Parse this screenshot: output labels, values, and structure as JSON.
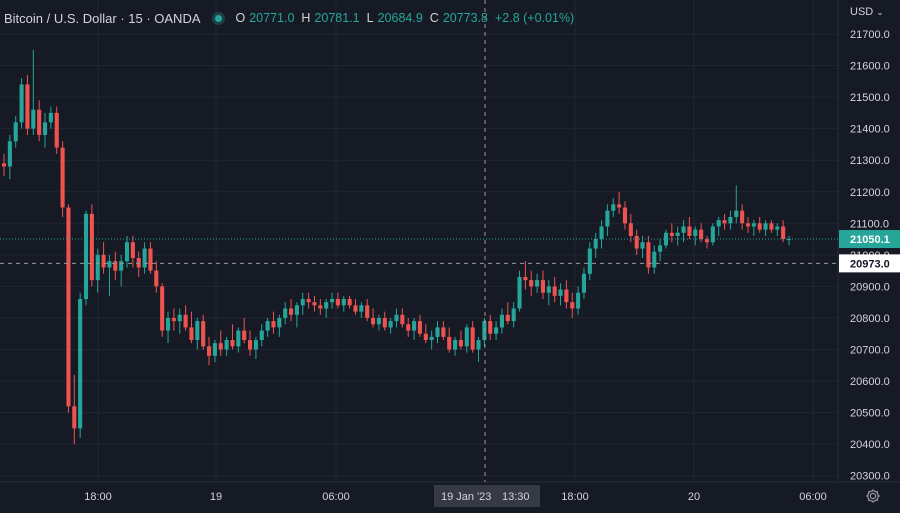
{
  "legend": {
    "symbol": "Bitcoin / U.S. Dollar · 15 · OANDA",
    "open_key": "O",
    "open": "20771.0",
    "high_key": "H",
    "high": "20781.1",
    "low_key": "L",
    "low": "20684.9",
    "close_key": "C",
    "close": "20773.8",
    "change": "+2.8 (+0.01%)"
  },
  "currency": "USD",
  "icons": {
    "status": "live-dot-icon",
    "currency_menu": "chevron-down-icon",
    "settings": "gear-icon"
  },
  "colors": {
    "up": "#26a69a",
    "down": "#ef5350",
    "background": "#161a25",
    "grid": "#222632",
    "text": "#d1d4dc"
  },
  "chart_data": {
    "type": "candlestick",
    "interval_minutes": 15,
    "ylim": [
      20300,
      21730
    ],
    "y_ticks": [
      "21700.0",
      "21600.0",
      "21500.0",
      "21400.0",
      "21300.0",
      "21200.0",
      "21100.0",
      "21000.0",
      "20900.0",
      "20800.0",
      "20700.0",
      "20600.0",
      "20500.0",
      "20400.0",
      "20300.0"
    ],
    "x_ticks": [
      "18:00",
      "19",
      "06:00",
      "18:00",
      "20",
      "06:00"
    ],
    "grid": true,
    "last_price": {
      "value": 21050.1,
      "label": "21050.1"
    },
    "crosshair": {
      "time_label": "19 Jan '23",
      "clock_label": "13:30",
      "price_label": "20973.0",
      "price": 20973.0
    },
    "candles": [
      [
        21290,
        21320,
        21250,
        21280
      ],
      [
        21280,
        21380,
        21240,
        21360
      ],
      [
        21360,
        21440,
        21340,
        21420
      ],
      [
        21420,
        21560,
        21400,
        21540
      ],
      [
        21540,
        21570,
        21380,
        21400
      ],
      [
        21400,
        21650,
        21380,
        21460
      ],
      [
        21460,
        21490,
        21360,
        21380
      ],
      [
        21380,
        21450,
        21340,
        21420
      ],
      [
        21420,
        21470,
        21400,
        21450
      ],
      [
        21450,
        21470,
        21320,
        21340
      ],
      [
        21340,
        21360,
        21120,
        21150
      ],
      [
        21150,
        21160,
        20500,
        20520
      ],
      [
        20520,
        20620,
        20400,
        20450
      ],
      [
        20450,
        20880,
        20420,
        20860
      ],
      [
        20860,
        21140,
        20840,
        21130
      ],
      [
        21130,
        21160,
        20900,
        20920
      ],
      [
        20920,
        21020,
        20880,
        21000
      ],
      [
        21000,
        21040,
        20940,
        20960
      ],
      [
        20960,
        21000,
        20870,
        20980
      ],
      [
        20980,
        21010,
        20920,
        20950
      ],
      [
        20950,
        21000,
        20900,
        20980
      ],
      [
        20980,
        21060,
        20960,
        21040
      ],
      [
        21040,
        21060,
        20960,
        20990
      ],
      [
        20990,
        21010,
        20930,
        20960
      ],
      [
        20960,
        21040,
        20940,
        21020
      ],
      [
        21020,
        21040,
        20940,
        20950
      ],
      [
        20950,
        20980,
        20880,
        20900
      ],
      [
        20900,
        20910,
        20740,
        20760
      ],
      [
        20760,
        20820,
        20720,
        20800
      ],
      [
        20800,
        20830,
        20760,
        20790
      ],
      [
        20790,
        20830,
        20750,
        20810
      ],
      [
        20810,
        20840,
        20760,
        20770
      ],
      [
        20770,
        20820,
        20720,
        20730
      ],
      [
        20730,
        20800,
        20700,
        20790
      ],
      [
        20790,
        20810,
        20700,
        20710
      ],
      [
        20710,
        20740,
        20650,
        20680
      ],
      [
        20680,
        20730,
        20660,
        20720
      ],
      [
        20720,
        20760,
        20680,
        20700
      ],
      [
        20700,
        20740,
        20680,
        20730
      ],
      [
        20730,
        20780,
        20700,
        20710
      ],
      [
        20710,
        20770,
        20690,
        20760
      ],
      [
        20760,
        20800,
        20720,
        20730
      ],
      [
        20730,
        20760,
        20680,
        20700
      ],
      [
        20700,
        20740,
        20670,
        20730
      ],
      [
        20730,
        20780,
        20710,
        20760
      ],
      [
        20760,
        20800,
        20740,
        20790
      ],
      [
        20790,
        20820,
        20750,
        20770
      ],
      [
        20770,
        20810,
        20740,
        20800
      ],
      [
        20800,
        20850,
        20780,
        20830
      ],
      [
        20830,
        20860,
        20790,
        20810
      ],
      [
        20810,
        20850,
        20770,
        20840
      ],
      [
        20840,
        20880,
        20810,
        20860
      ],
      [
        20860,
        20880,
        20830,
        20850
      ],
      [
        20850,
        20870,
        20820,
        20840
      ],
      [
        20840,
        20860,
        20810,
        20830
      ],
      [
        20830,
        20860,
        20800,
        20850
      ],
      [
        20850,
        20880,
        20830,
        20860
      ],
      [
        20860,
        20880,
        20830,
        20840
      ],
      [
        20840,
        20870,
        20820,
        20860
      ],
      [
        20860,
        20870,
        20830,
        20840
      ],
      [
        20840,
        20860,
        20810,
        20820
      ],
      [
        20820,
        20850,
        20800,
        20840
      ],
      [
        20840,
        20860,
        20790,
        20800
      ],
      [
        20800,
        20830,
        20770,
        20780
      ],
      [
        20780,
        20810,
        20760,
        20800
      ],
      [
        20800,
        20820,
        20760,
        20770
      ],
      [
        20770,
        20800,
        20750,
        20790
      ],
      [
        20790,
        20830,
        20770,
        20810
      ],
      [
        20810,
        20830,
        20770,
        20780
      ],
      [
        20780,
        20800,
        20740,
        20760
      ],
      [
        20760,
        20800,
        20730,
        20790
      ],
      [
        20790,
        20810,
        20740,
        20750
      ],
      [
        20750,
        20780,
        20720,
        20730
      ],
      [
        20730,
        20760,
        20700,
        20740
      ],
      [
        20740,
        20790,
        20720,
        20770
      ],
      [
        20770,
        20790,
        20730,
        20740
      ],
      [
        20740,
        20770,
        20690,
        20700
      ],
      [
        20700,
        20740,
        20680,
        20730
      ],
      [
        20730,
        20760,
        20700,
        20710
      ],
      [
        20710,
        20780,
        20690,
        20770
      ],
      [
        20770,
        20790,
        20690,
        20700
      ],
      [
        20700,
        20740,
        20660,
        20730
      ],
      [
        20730,
        20800,
        20710,
        20790
      ],
      [
        20790,
        20810,
        20730,
        20750
      ],
      [
        20750,
        20790,
        20730,
        20770
      ],
      [
        20770,
        20830,
        20750,
        20810
      ],
      [
        20810,
        20850,
        20780,
        20790
      ],
      [
        20790,
        20850,
        20770,
        20830
      ],
      [
        20830,
        20950,
        20820,
        20930
      ],
      [
        20930,
        20980,
        20890,
        20920
      ],
      [
        20920,
        20950,
        20870,
        20900
      ],
      [
        20900,
        20940,
        20880,
        20920
      ],
      [
        20920,
        20950,
        20860,
        20880
      ],
      [
        20880,
        20920,
        20840,
        20900
      ],
      [
        20900,
        20930,
        20850,
        20870
      ],
      [
        20870,
        20910,
        20840,
        20890
      ],
      [
        20890,
        20920,
        20830,
        20850
      ],
      [
        20850,
        20880,
        20800,
        20830
      ],
      [
        20830,
        20900,
        20810,
        20880
      ],
      [
        20880,
        20960,
        20860,
        20940
      ],
      [
        20940,
        21040,
        20920,
        21020
      ],
      [
        21020,
        21070,
        20990,
        21050
      ],
      [
        21050,
        21110,
        21020,
        21090
      ],
      [
        21090,
        21160,
        21060,
        21140
      ],
      [
        21140,
        21180,
        21120,
        21160
      ],
      [
        21160,
        21200,
        21130,
        21150
      ],
      [
        21150,
        21170,
        21080,
        21100
      ],
      [
        21100,
        21130,
        21040,
        21060
      ],
      [
        21060,
        21080,
        21000,
        21020
      ],
      [
        21020,
        21060,
        20990,
        21040
      ],
      [
        21040,
        21060,
        20940,
        20960
      ],
      [
        20960,
        21030,
        20940,
        21010
      ],
      [
        21010,
        21050,
        20980,
        21030
      ],
      [
        21030,
        21080,
        21020,
        21070
      ],
      [
        21070,
        21100,
        21040,
        21060
      ],
      [
        21060,
        21090,
        21030,
        21070
      ],
      [
        21070,
        21110,
        21040,
        21090
      ],
      [
        21090,
        21120,
        21050,
        21060
      ],
      [
        21060,
        21090,
        21030,
        21080
      ],
      [
        21080,
        21100,
        21040,
        21050
      ],
      [
        21050,
        21060,
        21020,
        21040
      ],
      [
        21040,
        21100,
        21030,
        21090
      ],
      [
        21090,
        21120,
        21060,
        21110
      ],
      [
        21110,
        21130,
        21080,
        21100
      ],
      [
        21100,
        21140,
        21080,
        21120
      ],
      [
        21120,
        21220,
        21100,
        21140
      ],
      [
        21140,
        21160,
        21080,
        21100
      ],
      [
        21100,
        21120,
        21070,
        21090
      ],
      [
        21090,
        21110,
        21060,
        21100
      ],
      [
        21100,
        21120,
        21070,
        21080
      ],
      [
        21080,
        21110,
        21060,
        21100
      ],
      [
        21100,
        21110,
        21070,
        21080
      ],
      [
        21080,
        21100,
        21060,
        21090
      ],
      [
        21090,
        21110,
        21040,
        21050
      ],
      [
        21050,
        21060,
        21030,
        21050
      ]
    ]
  }
}
